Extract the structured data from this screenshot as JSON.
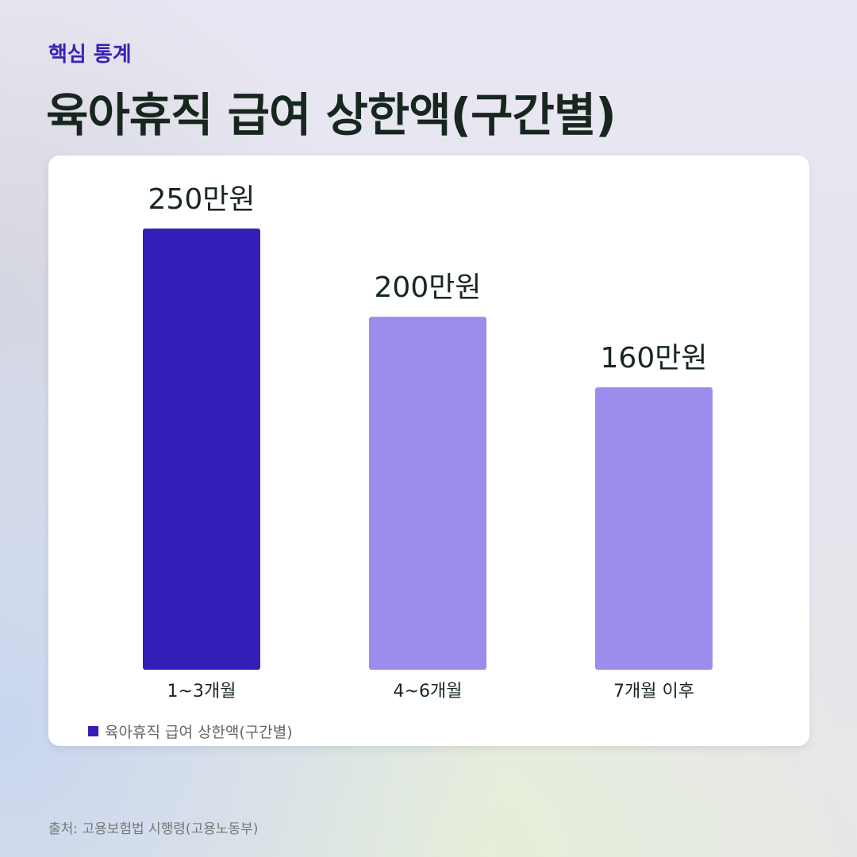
{
  "header": {
    "kicker": "핵심 통계",
    "title": "육아휴직 급여 상한액(구간별)"
  },
  "chart_data": {
    "type": "bar",
    "title": "육아휴직 급여 상한액(구간별)",
    "categories": [
      "1~3개월",
      "4~6개월",
      "7개월 이후"
    ],
    "series": [
      {
        "name": "육아휴직 급여 상한액(구간별)",
        "values": [
          250,
          200,
          160
        ]
      }
    ],
    "data_labels": [
      "250만원",
      "200만원",
      "160만원"
    ],
    "unit": "만원",
    "ylim": [
      0,
      250
    ],
    "grid": false,
    "legend_position": "bottom-left",
    "colors": [
      "#331fb7",
      "#9b8ded",
      "#9b8ded"
    ]
  },
  "legend": {
    "label": "육아휴직 급여 상한액(구간별)",
    "color": "#331fb7"
  },
  "footer": {
    "source": "출처: 고용보험법 시행령(고용노동부)"
  }
}
